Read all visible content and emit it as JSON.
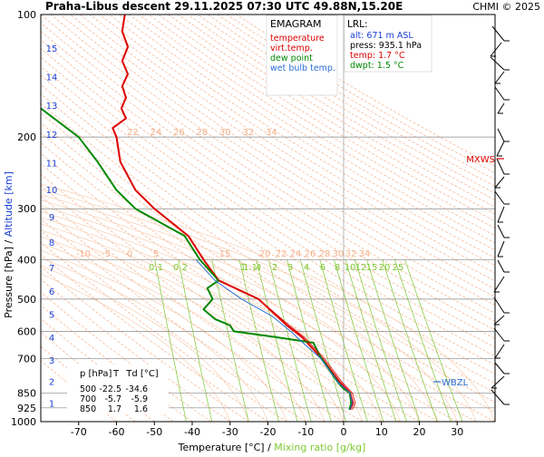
{
  "header": {
    "title": "Praha-Libus  descent  29.11.2025 07:30 UTC  49.88N,15.20E",
    "copyright": "CHMI © 2025"
  },
  "legend": {
    "title": "EMAGRAM",
    "items": [
      {
        "label": "temperature",
        "color": "#dd0000"
      },
      {
        "label": "virt.temp.",
        "color": "#dd0000"
      },
      {
        "label": "dew point",
        "color": "#008800"
      },
      {
        "label": "wet bulb temp.",
        "color": "#2a6fd6"
      }
    ]
  },
  "lrl": {
    "title": "LRL:",
    "lines": [
      {
        "text": "alt: 671 m ASL",
        "color": "#1a3fd6"
      },
      {
        "text": "press: 935.1 hPa",
        "color": "#000000"
      },
      {
        "text": "temp: 1.7 °C",
        "color": "#dd0000"
      },
      {
        "text": "dwpt: 1.5 °C",
        "color": "#008800"
      }
    ]
  },
  "table": {
    "headers": [
      "p [hPa]",
      "T",
      "Td [°C]"
    ],
    "rows": [
      [
        "500",
        "-22.5",
        "-34.6"
      ],
      [
        "700",
        "-5.7",
        "-5.9"
      ],
      [
        "850",
        "1.7",
        "1.6"
      ]
    ]
  },
  "markers": {
    "mxws": "MXWS",
    "wbzl": "WBZL"
  },
  "colors": {
    "temperature": "#dd0000",
    "dewpoint": "#008800",
    "wetbulb": "#2a6fd6",
    "altitude_axis": "#1a3fd6",
    "dry_adiabat": "#f5b08a",
    "mixing_ratio": "#7ec832",
    "chmi": "#dd0000"
  },
  "chart_data": {
    "type": "line",
    "xlabel": "Temperature [°C]",
    "xlabel_secondary": "Mixing ratio [g/kg]",
    "ylabel": "Pressure [hPa]",
    "ylabel_secondary": "Altitude [km]",
    "xlim": [
      -80,
      40
    ],
    "ylim": [
      1000,
      100
    ],
    "y_scale": "log",
    "x_ticks": [
      -70,
      -60,
      -50,
      -40,
      -30,
      -20,
      -10,
      0,
      10,
      20,
      30
    ],
    "y_ticks": [
      100,
      200,
      300,
      400,
      500,
      600,
      700,
      850,
      925,
      1000
    ],
    "altitude_ticks": [
      {
        "km": 1,
        "p": 900
      },
      {
        "km": 2,
        "p": 796
      },
      {
        "km": 3,
        "p": 705
      },
      {
        "km": 4,
        "p": 620
      },
      {
        "km": 5,
        "p": 545
      },
      {
        "km": 6,
        "p": 478
      },
      {
        "km": 7,
        "p": 418
      },
      {
        "km": 8,
        "p": 362
      },
      {
        "km": 9,
        "p": 314
      },
      {
        "km": 10,
        "p": 269
      },
      {
        "km": 11,
        "p": 231
      },
      {
        "km": 12,
        "p": 197
      },
      {
        "km": 13,
        "p": 167
      },
      {
        "km": 14,
        "p": 142
      },
      {
        "km": 15,
        "p": 121
      }
    ],
    "dry_adiabat_labels_upper": [
      "22",
      "24",
      "26",
      "28",
      "30",
      "32",
      "34"
    ],
    "dry_adiabat_labels_lower": [
      "-10",
      "-5",
      "0",
      "5",
      "15",
      "20",
      "22",
      "24",
      "26",
      "28",
      "30",
      "32",
      "34"
    ],
    "mixing_ratio_labels": [
      "0.1",
      "0.2",
      "1",
      "1.1",
      "4",
      "2",
      "3",
      "4",
      "6",
      "8",
      "10",
      "12",
      "15",
      "20",
      "25"
    ],
    "grid": true,
    "series": [
      {
        "name": "temperature",
        "points": [
          [
            -57.8,
            100
          ],
          [
            -58.5,
            110
          ],
          [
            -57,
            120
          ],
          [
            -58.5,
            130
          ],
          [
            -57,
            140
          ],
          [
            -58.5,
            150
          ],
          [
            -57.5,
            160
          ],
          [
            -58.7,
            170
          ],
          [
            -57.5,
            180
          ],
          [
            -61,
            190
          ],
          [
            -60,
            200
          ],
          [
            -59,
            230
          ],
          [
            -55,
            270
          ],
          [
            -50,
            300
          ],
          [
            -41,
            350
          ],
          [
            -37,
            400
          ],
          [
            -33,
            450
          ],
          [
            -22.5,
            500
          ],
          [
            -15,
            580
          ],
          [
            -11,
            620
          ],
          [
            -5.7,
            700
          ],
          [
            -1,
            800
          ],
          [
            1.7,
            850
          ],
          [
            2.5,
            900
          ],
          [
            1.7,
            935
          ]
        ]
      },
      {
        "name": "dew point",
        "points": [
          [
            -80,
            170
          ],
          [
            -70,
            200
          ],
          [
            -65,
            230
          ],
          [
            -60,
            270
          ],
          [
            -55,
            300
          ],
          [
            -42,
            350
          ],
          [
            -38,
            400
          ],
          [
            -33,
            450
          ],
          [
            -36,
            470
          ],
          [
            -34.6,
            500
          ],
          [
            -37,
            530
          ],
          [
            -34,
            560
          ],
          [
            -30,
            580
          ],
          [
            -29,
            600
          ],
          [
            -18,
            620
          ],
          [
            -8,
            640
          ],
          [
            -5.9,
            700
          ],
          [
            -1.5,
            800
          ],
          [
            0,
            830
          ],
          [
            1.6,
            850
          ],
          [
            2,
            900
          ],
          [
            1.5,
            935
          ]
        ]
      },
      {
        "name": "wet bulb temp.",
        "points": [
          [
            -39,
            400
          ],
          [
            -34,
            450
          ],
          [
            -27,
            500
          ],
          [
            -19,
            550
          ],
          [
            -14,
            600
          ],
          [
            -10,
            650
          ],
          [
            -6,
            700
          ],
          [
            -1.5,
            800
          ],
          [
            1.6,
            850
          ],
          [
            2.3,
            900
          ],
          [
            1.6,
            935
          ]
        ]
      }
    ]
  }
}
